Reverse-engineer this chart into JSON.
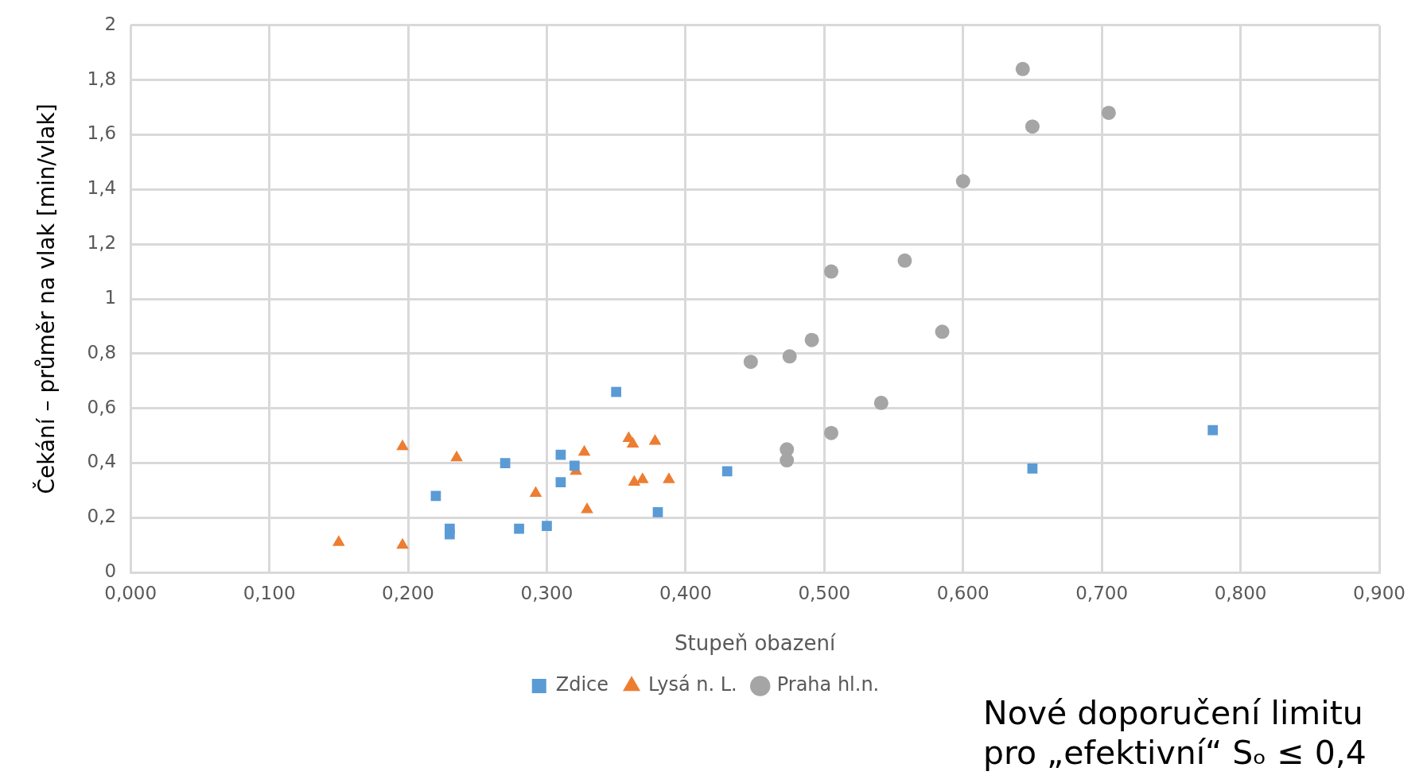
{
  "chart_data": {
    "type": "scatter",
    "xlabel": "Stupeň obazení",
    "ylabel": "Čekání – průměr na vlak [min/vlak]",
    "xlim": [
      0,
      0.9
    ],
    "xticks": [
      {
        "value": 0,
        "label": "0,000"
      },
      {
        "value": 0.1,
        "label": "0,100"
      },
      {
        "value": 0.2,
        "label": "0,200"
      },
      {
        "value": 0.3,
        "label": "0,300"
      },
      {
        "value": 0.4,
        "label": "0,400"
      },
      {
        "value": 0.5,
        "label": "0,500"
      },
      {
        "value": 0.6,
        "label": "0,600"
      },
      {
        "value": 0.7,
        "label": "0,700"
      },
      {
        "value": 0.8,
        "label": "0,800"
      },
      {
        "value": 0.9,
        "label": "0,900"
      }
    ],
    "ylim": [
      0,
      2
    ],
    "yticks": [
      0,
      {
        "value": 0.2,
        "label": "0,2"
      },
      {
        "value": 0.4,
        "label": "0,4"
      },
      {
        "value": 0.6,
        "label": "0,6"
      },
      {
        "value": 0.8,
        "label": "0,8"
      },
      1,
      {
        "value": 1.2,
        "label": "1,2"
      },
      {
        "value": 1.4,
        "label": "1,4"
      },
      {
        "value": 1.6,
        "label": "1,6"
      },
      {
        "value": 1.8,
        "label": "1,8"
      },
      2
    ],
    "grid": true,
    "legend": "bottom",
    "series": [
      {
        "name": "Zdice",
        "color": "#5b9bd5",
        "marker": "square",
        "x": [
          0.22,
          0.23,
          0.23,
          0.27,
          0.28,
          0.3,
          0.31,
          0.31,
          0.32,
          0.35,
          0.38,
          0.43,
          0.65,
          0.78
        ],
        "values": [
          0.28,
          0.16,
          0.14,
          0.4,
          0.16,
          0.17,
          0.43,
          0.33,
          0.39,
          0.66,
          0.22,
          0.37,
          0.38,
          0.52
        ]
      },
      {
        "name": "Lysá n. L.",
        "color": "#ed7d31",
        "marker": "triangle",
        "x": [
          0.15,
          0.196,
          0.196,
          0.235,
          0.292,
          0.321,
          0.327,
          0.329,
          0.359,
          0.362,
          0.363,
          0.369,
          0.378,
          0.388
        ],
        "values": [
          0.11,
          0.46,
          0.1,
          0.42,
          0.29,
          0.37,
          0.44,
          0.23,
          0.49,
          0.47,
          0.33,
          0.34,
          0.48,
          0.34
        ]
      },
      {
        "name": "Praha hl.n.",
        "color": "#a5a5a5",
        "marker": "circle",
        "x": [
          0.643,
          0.65,
          0.705,
          0.6,
          0.558,
          0.505,
          0.585,
          0.491,
          0.475,
          0.447,
          0.541,
          0.505,
          0.473,
          0.473
        ],
        "values": [
          1.84,
          1.63,
          1.68,
          1.43,
          1.14,
          1.1,
          0.88,
          0.85,
          0.79,
          0.77,
          0.62,
          0.51,
          0.45,
          0.41
        ]
      }
    ],
    "annotations": [
      "Nové doporučení limitu pro „efektivní“ Sₒ ≤ 0,4"
    ]
  }
}
